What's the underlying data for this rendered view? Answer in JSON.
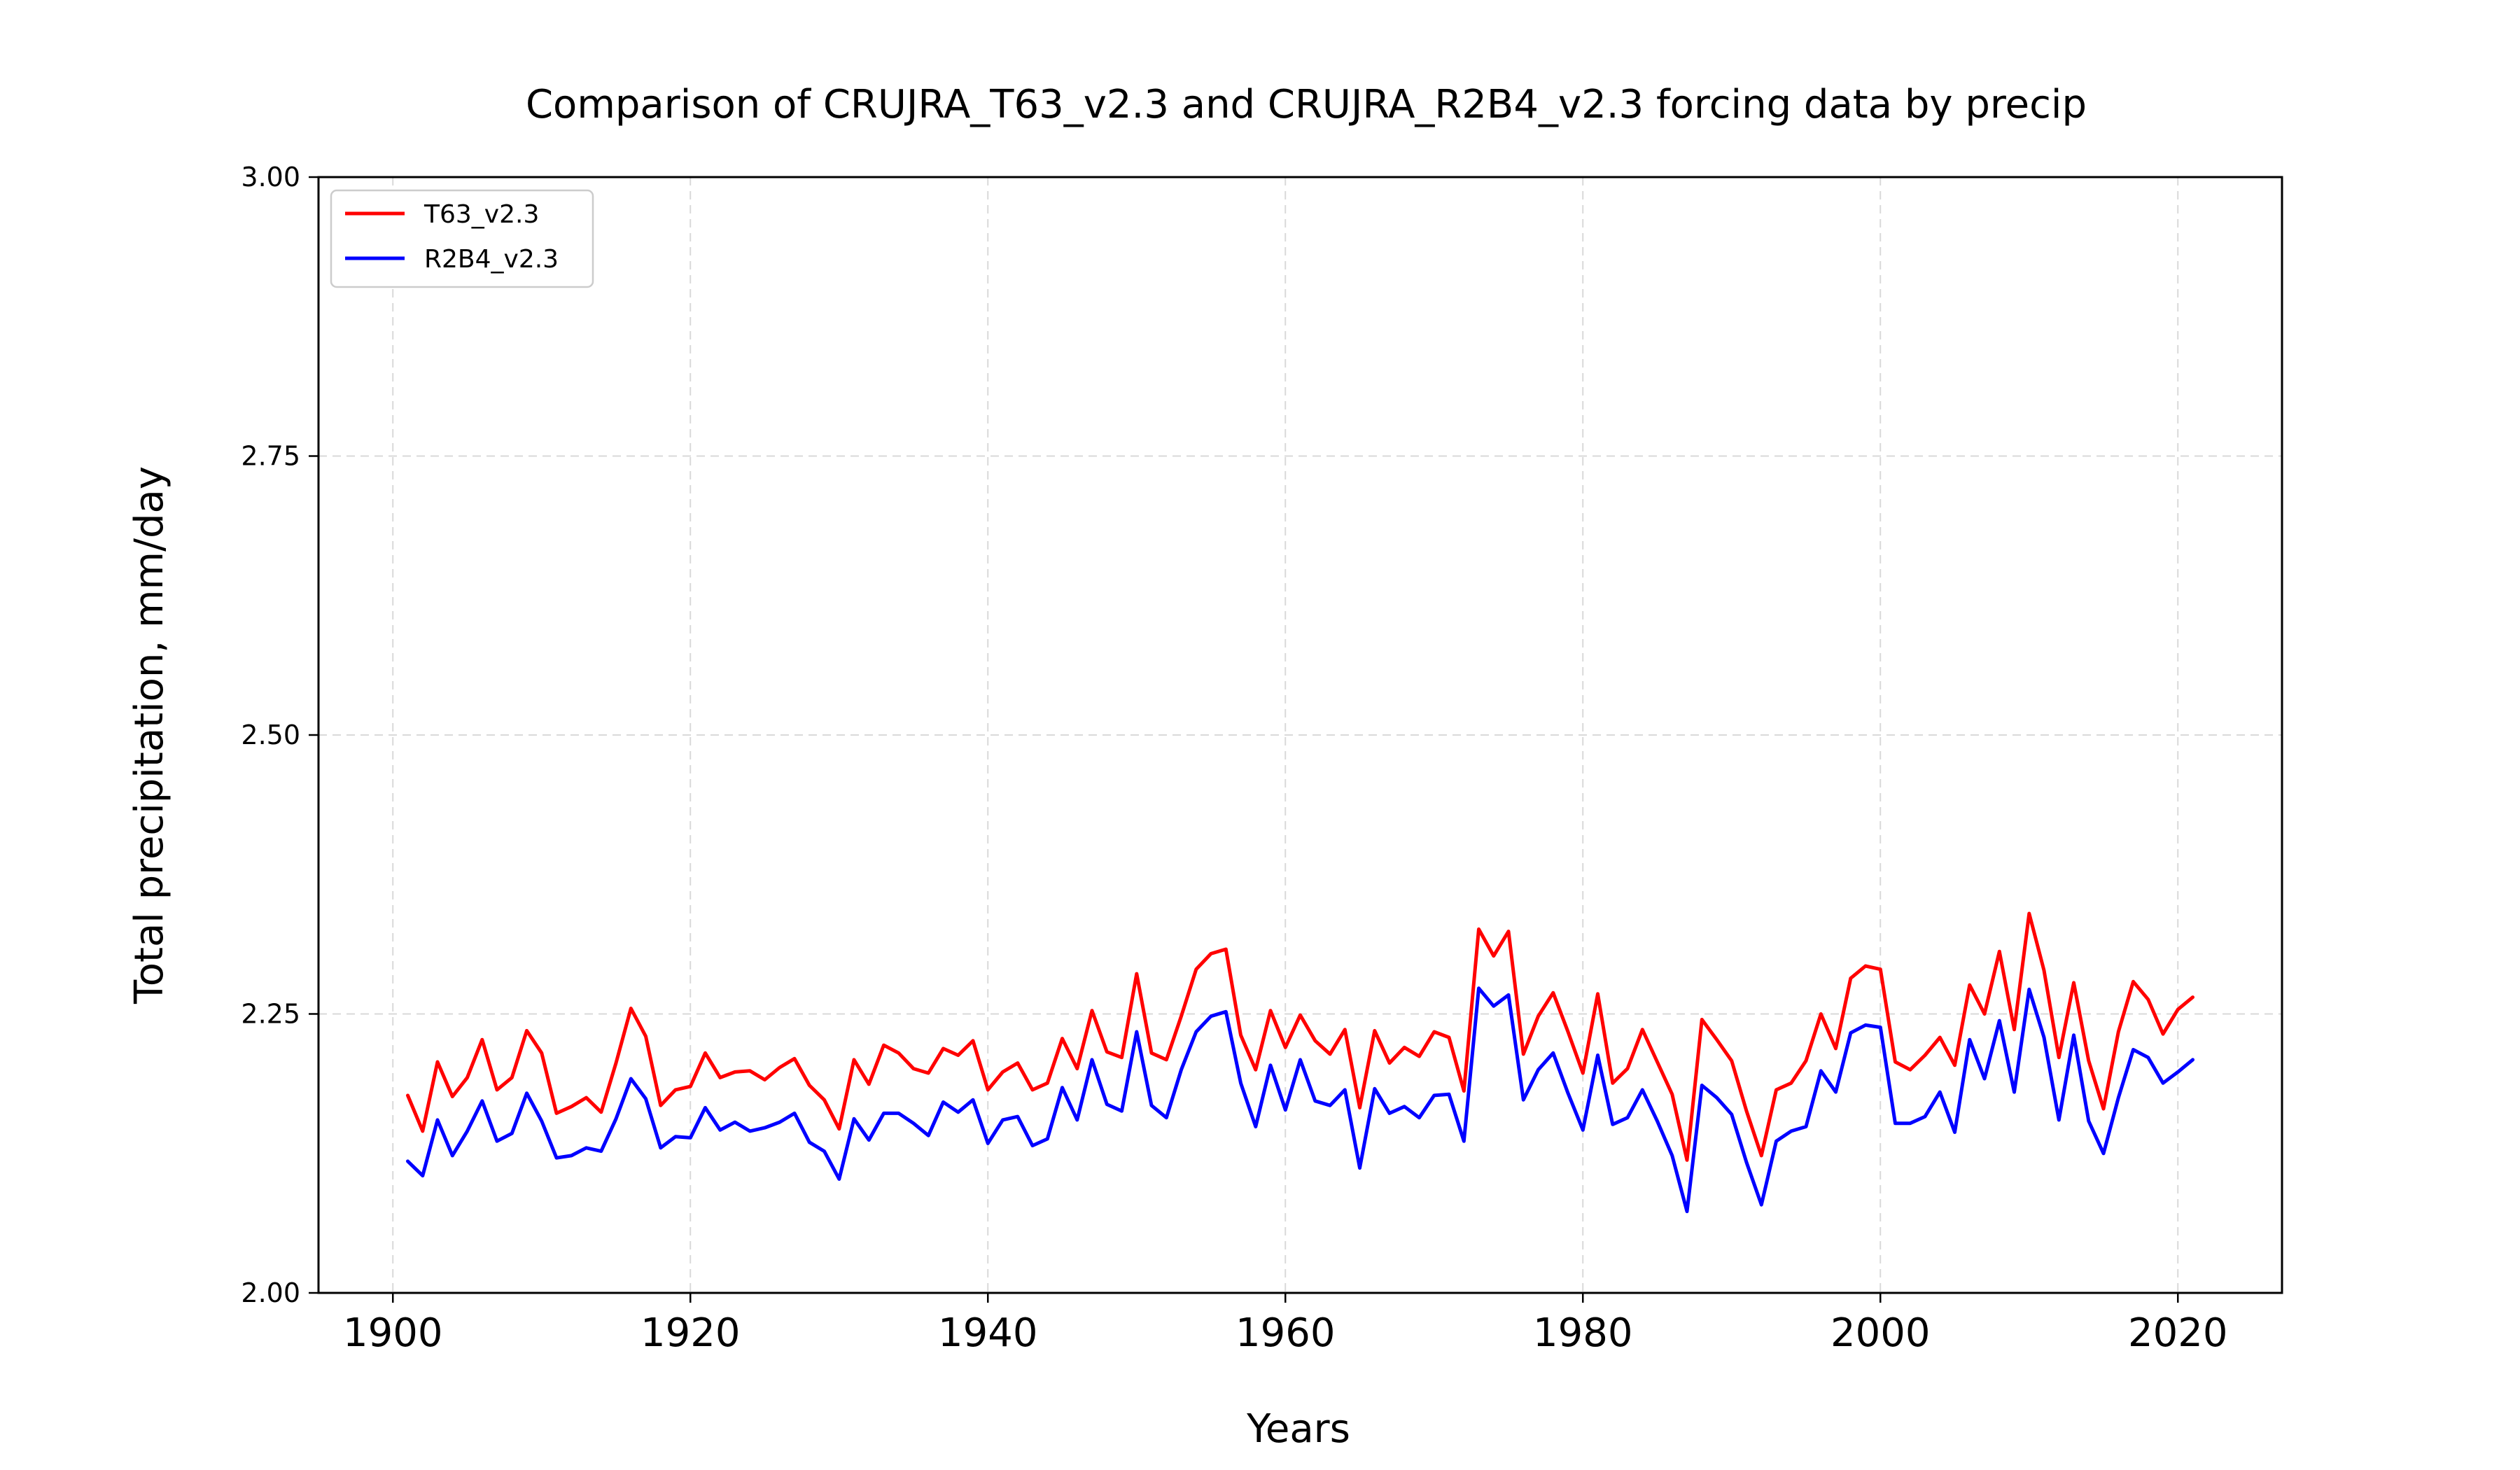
{
  "chart_data": {
    "type": "line",
    "title": "Comparison of CRUJRA_T63_v2.3 and CRUJRA_R2B4_v2.3 forcing data by precip",
    "xlabel": "Years",
    "ylabel": "Total precipitation, mm/day",
    "xlim": [
      1895,
      2027
    ],
    "ylim": [
      2.0,
      3.0
    ],
    "xticks": [
      1900,
      1920,
      1940,
      1960,
      1980,
      2000,
      2020
    ],
    "yticks": [
      2.0,
      2.25,
      2.5,
      2.75,
      3.0
    ],
    "xtick_labels": [
      "1900",
      "1920",
      "1940",
      "1960",
      "1980",
      "2000",
      "2020"
    ],
    "ytick_labels": [
      "2.00",
      "2.25",
      "2.50",
      "2.75",
      "3.00"
    ],
    "grid": true,
    "legend_position": "top-left",
    "x_start": 1901,
    "series": [
      {
        "name": "T63_v2.3",
        "color": "#ff0000",
        "values": [
          2.177,
          2.145,
          2.207,
          2.176,
          2.193,
          2.227,
          2.182,
          2.193,
          2.235,
          2.215,
          2.161,
          2.167,
          2.175,
          2.162,
          2.206,
          2.255,
          2.23,
          2.168,
          2.182,
          2.185,
          2.215,
          2.193,
          2.198,
          2.199,
          2.191,
          2.202,
          2.21,
          2.186,
          2.173,
          2.147,
          2.209,
          2.187,
          2.222,
          2.215,
          2.201,
          2.197,
          2.219,
          2.213,
          2.226,
          2.182,
          2.198,
          2.206,
          2.182,
          2.188,
          2.228,
          2.201,
          2.253,
          2.216,
          2.211,
          2.286,
          2.215,
          2.209,
          2.248,
          2.29,
          2.304,
          2.308,
          2.231,
          2.2,
          2.253,
          2.22,
          2.249,
          2.226,
          2.214,
          2.236,
          2.166,
          2.235,
          2.206,
          2.22,
          2.212,
          2.234,
          2.229,
          2.181,
          2.326,
          2.302,
          2.324,
          2.214,
          2.248,
          2.269,
          2.234,
          2.197,
          2.268,
          2.188,
          2.201,
          2.236,
          2.207,
          2.178,
          2.119,
          2.245,
          2.227,
          2.208,
          2.163,
          2.123,
          2.182,
          2.188,
          2.208,
          2.25,
          2.219,
          2.282,
          2.293,
          2.29,
          2.207,
          2.2,
          2.213,
          2.229,
          2.204,
          2.276,
          2.25,
          2.306,
          2.236,
          2.34,
          2.289,
          2.211,
          2.278,
          2.208,
          2.165,
          2.234,
          2.279,
          2.263,
          2.232,
          2.254,
          2.265
        ]
      },
      {
        "name": "R2B4_v2.3",
        "color": "#0000ff",
        "values": [
          2.118,
          2.105,
          2.155,
          2.123,
          2.145,
          2.172,
          2.136,
          2.143,
          2.179,
          2.154,
          2.121,
          2.123,
          2.13,
          2.127,
          2.156,
          2.192,
          2.174,
          2.13,
          2.14,
          2.139,
          2.166,
          2.146,
          2.153,
          2.145,
          2.148,
          2.153,
          2.161,
          2.135,
          2.127,
          2.102,
          2.156,
          2.137,
          2.161,
          2.161,
          2.152,
          2.141,
          2.171,
          2.162,
          2.173,
          2.134,
          2.155,
          2.158,
          2.132,
          2.138,
          2.184,
          2.155,
          2.209,
          2.169,
          2.163,
          2.234,
          2.168,
          2.157,
          2.2,
          2.234,
          2.248,
          2.252,
          2.188,
          2.149,
          2.204,
          2.164,
          2.209,
          2.172,
          2.168,
          2.182,
          2.112,
          2.183,
          2.161,
          2.167,
          2.157,
          2.177,
          2.178,
          2.136,
          2.273,
          2.257,
          2.267,
          2.173,
          2.2,
          2.215,
          2.179,
          2.146,
          2.213,
          2.151,
          2.157,
          2.182,
          2.154,
          2.123,
          2.073,
          2.186,
          2.175,
          2.16,
          2.117,
          2.079,
          2.136,
          2.145,
          2.149,
          2.199,
          2.18,
          2.233,
          2.24,
          2.238,
          2.152,
          2.152,
          2.158,
          2.18,
          2.144,
          2.227,
          2.192,
          2.244,
          2.18,
          2.272,
          2.229,
          2.155,
          2.231,
          2.154,
          2.125,
          2.175,
          2.218,
          2.211,
          2.188,
          2.198,
          2.209
        ]
      }
    ]
  }
}
